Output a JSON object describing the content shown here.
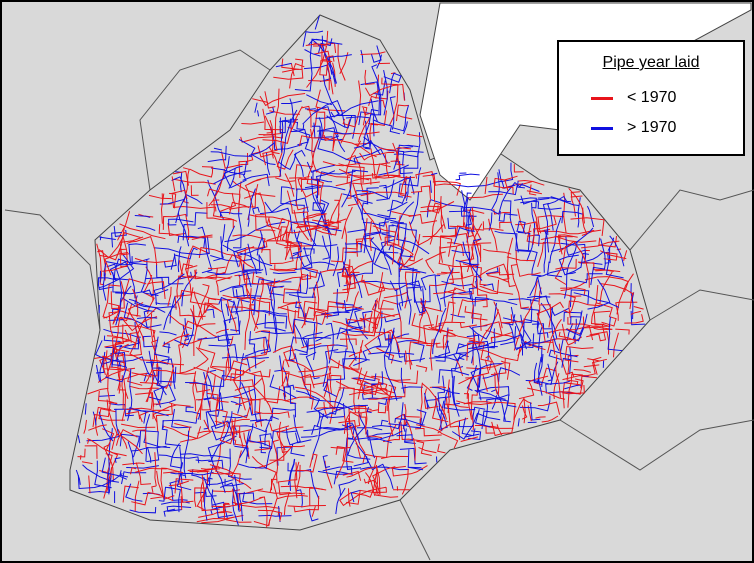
{
  "legend": {
    "title": "Pipe year laid",
    "items": [
      {
        "label": "< 1970",
        "color": "#e8141b"
      },
      {
        "label": "> 1970",
        "color": "#1010e0"
      }
    ]
  }
}
